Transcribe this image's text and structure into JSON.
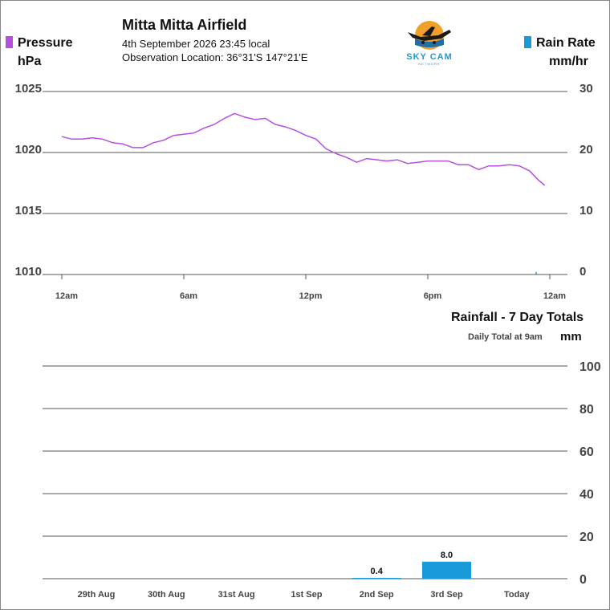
{
  "station": {
    "name": "Mitta Mitta Airfield",
    "datetime": "4th September 2026  23:45 local",
    "location": "Observation Location: 36°31'S 147°21'E"
  },
  "logo": {
    "text": "SKY CAM",
    "subtext": "NETWORK"
  },
  "colors": {
    "pressure": "#b54fe0",
    "rain": "#1a9bd9",
    "grid": "#555555",
    "label": "#444444"
  },
  "chart_data": [
    {
      "type": "line",
      "left_axis": {
        "title": "Pressure",
        "unit": "hPa",
        "ticks": [
          1025,
          1020,
          1015,
          1010
        ],
        "ylim": [
          1010,
          1025
        ]
      },
      "right_axis": {
        "title": "Rain Rate",
        "unit": "mm/hr",
        "ticks": [
          30,
          20,
          10,
          0
        ],
        "ylim": [
          0,
          30
        ]
      },
      "x_ticks": [
        "12am",
        "6am",
        "12pm",
        "6pm",
        "12am"
      ],
      "x_tick_hours": [
        0,
        6,
        12,
        18,
        24
      ],
      "series": [
        {
          "name": "Pressure",
          "axis": "left",
          "x_hours": [
            0,
            0.5,
            1.0,
            1.5,
            2.0,
            2.5,
            3.0,
            3.5,
            4.0,
            4.5,
            5.0,
            5.5,
            6.0,
            6.5,
            7.0,
            7.5,
            8.0,
            8.5,
            9.0,
            9.5,
            10.0,
            10.5,
            11.0,
            11.5,
            12.0,
            12.5,
            13.0,
            13.5,
            14.0,
            14.5,
            15.0,
            15.5,
            16.0,
            16.5,
            17.0,
            17.5,
            18.0,
            18.5,
            19.0,
            19.5,
            20.0,
            20.5,
            21.0,
            21.5,
            22.0,
            22.5,
            23.0,
            23.4,
            23.75
          ],
          "values": [
            1021.3,
            1021.1,
            1021.1,
            1021.2,
            1021.1,
            1020.8,
            1020.7,
            1020.4,
            1020.4,
            1020.8,
            1021.0,
            1021.4,
            1021.5,
            1021.6,
            1022.0,
            1022.3,
            1022.8,
            1023.2,
            1022.9,
            1022.7,
            1022.8,
            1022.3,
            1022.1,
            1021.8,
            1021.4,
            1021.1,
            1020.3,
            1019.9,
            1019.6,
            1019.2,
            1019.5,
            1019.4,
            1019.3,
            1019.4,
            1019.1,
            1019.2,
            1019.3,
            1019.3,
            1019.3,
            1019.0,
            1019.0,
            1018.6,
            1018.9,
            1018.9,
            1019.0,
            1018.9,
            1018.5,
            1017.8,
            1017.3
          ]
        },
        {
          "name": "Rain Rate",
          "axis": "right",
          "type": "bar",
          "x_hours": [
            23.3
          ],
          "values": [
            0.4
          ]
        }
      ]
    },
    {
      "type": "bar",
      "title": "Rainfall - 7 Day Totals",
      "subtitle": "Daily Total at 9am",
      "ylabel": "mm",
      "ylim": [
        0,
        100
      ],
      "y_ticks": [
        100,
        80,
        60,
        40,
        20,
        0
      ],
      "categories": [
        "29th Aug",
        "30th Aug",
        "31st Aug",
        "1st Sep",
        "2nd Sep",
        "3rd Sep",
        "Today"
      ],
      "values": [
        0,
        0,
        0,
        0,
        0.4,
        8.0,
        0
      ],
      "value_labels": [
        "",
        "",
        "",
        "",
        "0.4",
        "8.0",
        ""
      ]
    }
  ]
}
